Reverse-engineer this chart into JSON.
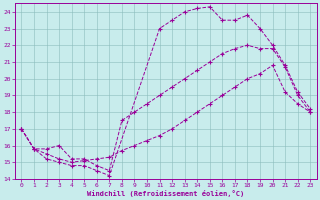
{
  "xlabel": "Windchill (Refroidissement éolien,°C)",
  "background_color": "#c8ecec",
  "line_color": "#990099",
  "xlim": [
    -0.5,
    23.5
  ],
  "ylim": [
    14,
    24.5
  ],
  "yticks": [
    14,
    15,
    16,
    17,
    18,
    19,
    20,
    21,
    22,
    23,
    24
  ],
  "xticks": [
    0,
    1,
    2,
    3,
    4,
    5,
    6,
    7,
    8,
    9,
    10,
    11,
    12,
    13,
    14,
    15,
    16,
    17,
    18,
    19,
    20,
    21,
    22,
    23
  ],
  "line1_x": [
    0,
    1,
    2,
    3,
    4,
    5,
    6,
    7,
    8,
    9,
    10,
    11,
    12,
    13,
    14,
    15,
    16,
    17,
    18,
    19,
    20,
    21,
    22,
    23
  ],
  "line1_y": [
    17.0,
    15.8,
    15.8,
    16.0,
    15.2,
    15.2,
    14.8,
    14.5,
    17.5,
    18.0,
    18.5,
    19.0,
    19.5,
    20.0,
    20.5,
    21.0,
    21.5,
    21.8,
    22.0,
    21.8,
    21.8,
    20.7,
    19.0,
    18.0
  ],
  "line2_x": [
    0,
    1,
    2,
    3,
    4,
    5,
    6,
    7,
    11,
    12,
    13,
    14,
    15,
    16,
    17,
    18,
    19,
    20,
    21,
    22,
    23
  ],
  "line2_y": [
    17.0,
    15.8,
    15.2,
    15.0,
    14.8,
    14.8,
    14.5,
    14.2,
    23.0,
    23.5,
    24.0,
    24.2,
    24.3,
    23.5,
    23.5,
    23.8,
    23.0,
    22.0,
    20.8,
    19.2,
    18.2
  ],
  "line3_x": [
    0,
    1,
    2,
    3,
    4,
    5,
    6,
    7,
    8,
    9,
    10,
    11,
    12,
    13,
    14,
    15,
    16,
    17,
    18,
    19,
    20,
    21,
    22,
    23
  ],
  "line3_y": [
    17.0,
    15.8,
    15.5,
    15.2,
    15.0,
    15.1,
    15.2,
    15.3,
    15.7,
    16.0,
    16.3,
    16.6,
    17.0,
    17.5,
    18.0,
    18.5,
    19.0,
    19.5,
    20.0,
    20.3,
    20.8,
    19.2,
    18.5,
    18.0
  ]
}
